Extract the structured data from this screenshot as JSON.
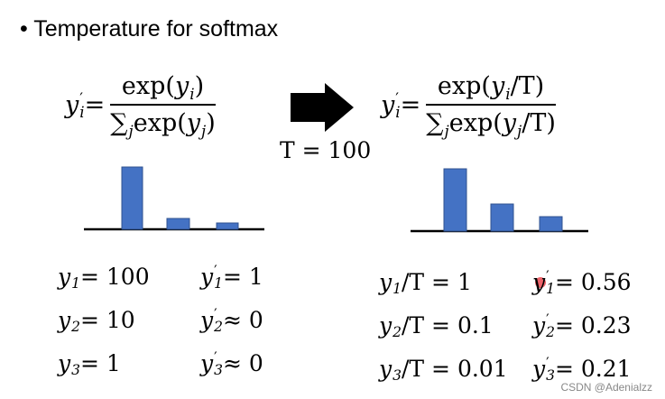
{
  "title": "Temperature for softmax",
  "left_formula": {
    "lhs": [
      [
        "y",
        "i",
        "′"
      ],
      " ="
    ],
    "numerator": [
      "exp(",
      [
        "y",
        "i"
      ],
      ")"
    ],
    "denominator": [
      [
        "∑",
        "j"
      ],
      " exp(",
      [
        "y",
        "j"
      ],
      ")"
    ]
  },
  "arrow_label": "T = 100",
  "right_formula": {
    "lhs": [
      [
        "y",
        "i",
        "′"
      ],
      " ="
    ],
    "numerator": [
      "exp(",
      [
        "y",
        "i"
      ],
      "/T)"
    ],
    "denominator": [
      [
        "∑",
        "j"
      ],
      " exp(",
      [
        "y",
        "j"
      ],
      "/T)"
    ]
  },
  "left_equations": [
    [
      [
        [
          "y",
          "1"
        ],
        " = 100"
      ],
      [
        [
          "y",
          "1",
          "′"
        ],
        " = 1"
      ]
    ],
    [
      [
        [
          "y",
          "2"
        ],
        " = 10"
      ],
      [
        [
          "y",
          "2",
          "′"
        ],
        " ≈ 0"
      ]
    ],
    [
      [
        [
          "y",
          "3"
        ],
        " = 1"
      ],
      [
        [
          "y",
          "3",
          "′"
        ],
        " ≈ 0"
      ]
    ]
  ],
  "right_equations": [
    [
      [
        [
          "y",
          "1"
        ],
        "/T = 1"
      ],
      [
        [
          "y",
          "1",
          "′"
        ],
        " = 0.56"
      ]
    ],
    [
      [
        [
          "y",
          "2"
        ],
        "/T = 0.1"
      ],
      [
        [
          "y",
          "2",
          "′"
        ],
        " = 0.23"
      ]
    ],
    [
      [
        [
          "y",
          "3"
        ],
        "/T = 0.01"
      ],
      [
        [
          "y",
          "3",
          "′"
        ],
        " = 0.21"
      ]
    ]
  ],
  "watermark": "CSDN @Adenialzz"
}
